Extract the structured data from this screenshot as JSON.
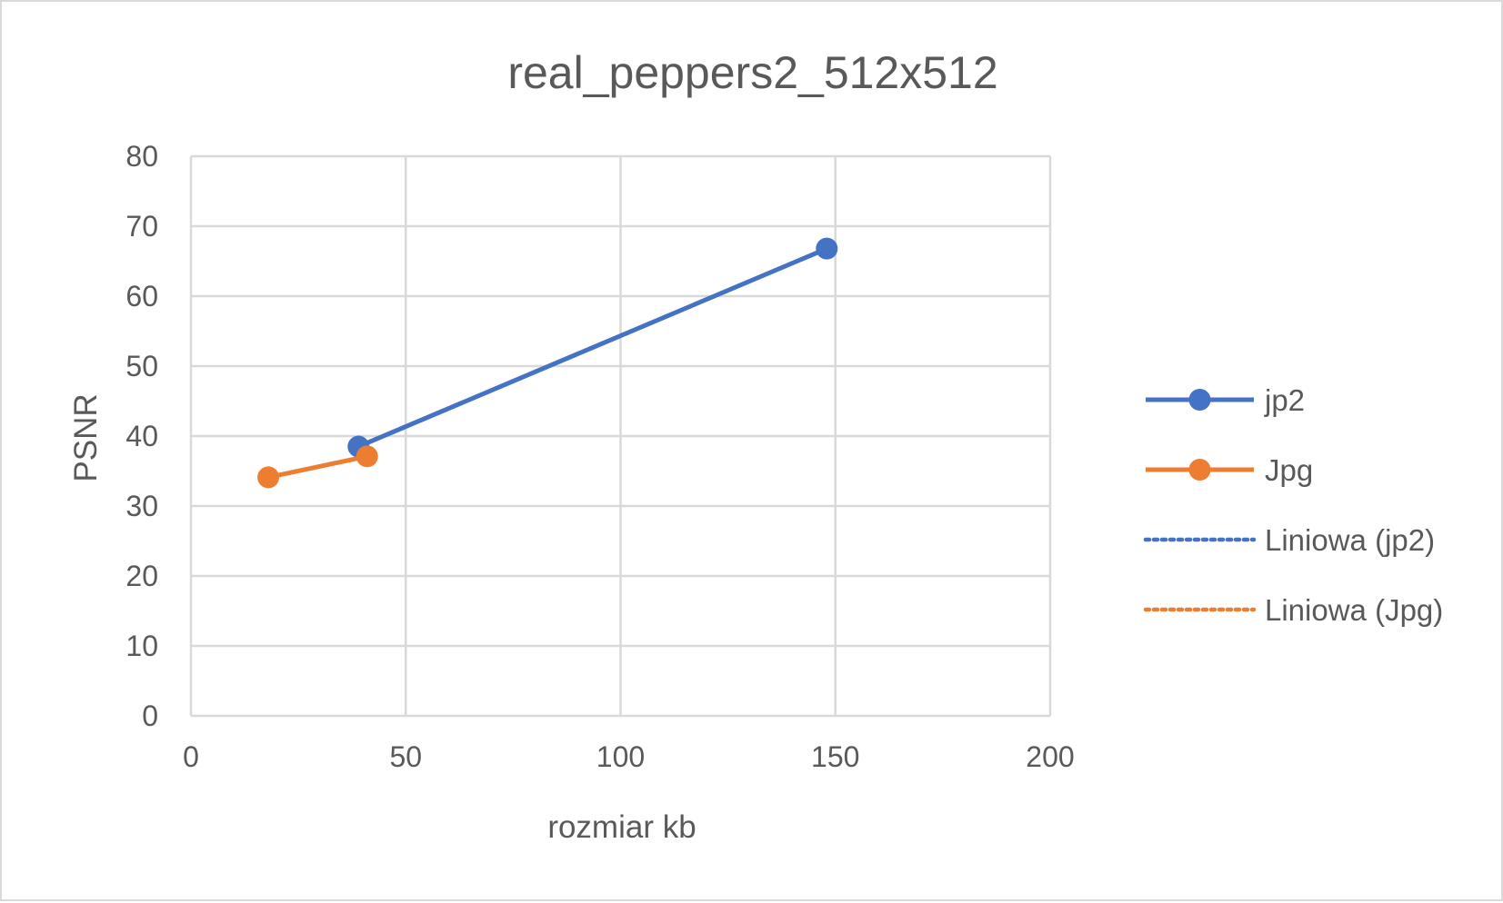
{
  "chart_data": {
    "type": "scatter",
    "title": "real_peppers2_512x512",
    "xlabel": "rozmiar kb",
    "ylabel": "PSNR",
    "xlim": [
      0,
      200
    ],
    "ylim": [
      0,
      80
    ],
    "x_ticks": [
      "0",
      "50",
      "100",
      "150",
      "200"
    ],
    "y_ticks": [
      "0",
      "10",
      "20",
      "30",
      "40",
      "50",
      "60",
      "70",
      "80"
    ],
    "grid": true,
    "legend_position": "right",
    "series": [
      {
        "name": "jp2",
        "color": "#4472c4",
        "style": "line-markers",
        "x": [
          39,
          148
        ],
        "y": [
          38.5,
          66.8
        ]
      },
      {
        "name": "Jpg",
        "color": "#ed7d31",
        "style": "line-markers",
        "x": [
          18,
          41
        ],
        "y": [
          34.1,
          37.1
        ]
      }
    ],
    "trendlines": [
      {
        "name": "Liniowa (jp2)",
        "color": "#4472c4",
        "style": "dotted"
      },
      {
        "name": "Liniowa (Jpg)",
        "color": "#ed7d31",
        "style": "dotted"
      }
    ]
  }
}
